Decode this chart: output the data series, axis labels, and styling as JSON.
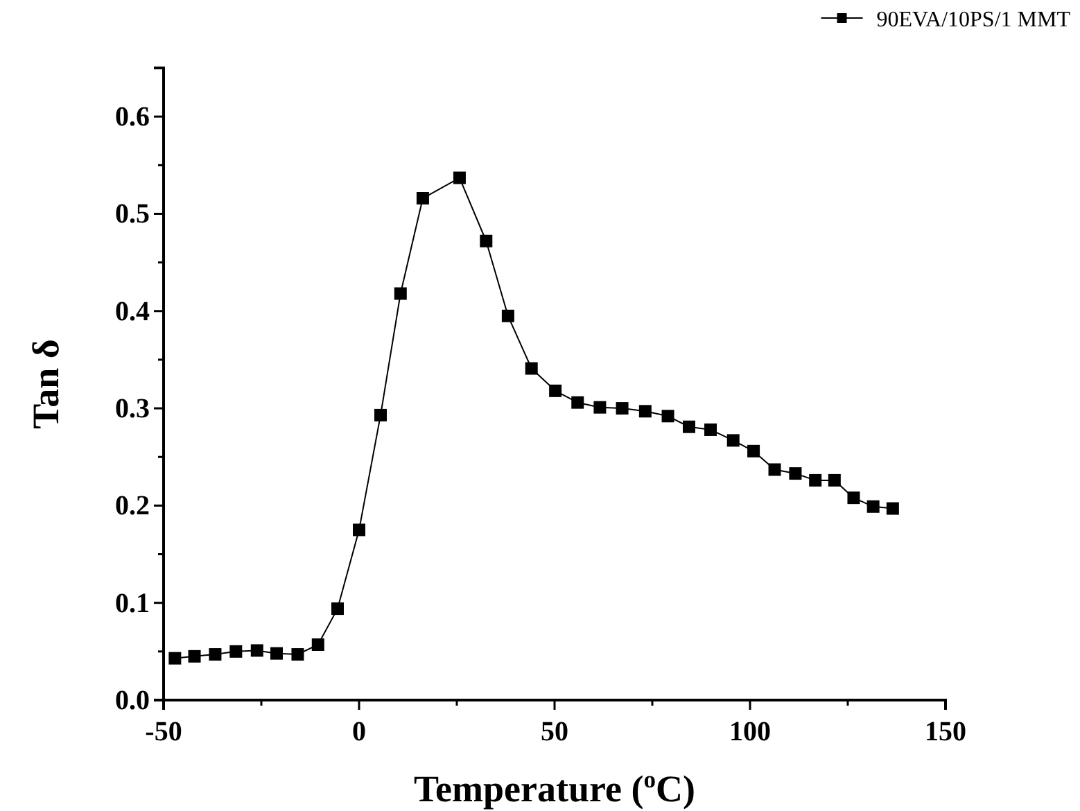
{
  "chart_data": {
    "type": "line",
    "xlabel": "Temperature  ($^{o}$C)",
    "ylabel": "Tan δ",
    "xlim": [
      -50,
      150
    ],
    "ylim": [
      0,
      0.65
    ],
    "xticks": [
      -50,
      {
        "value": -25,
        "label": null
      },
      0,
      {
        "value": 25,
        "label": null
      },
      50,
      {
        "value": 75,
        "label": null
      },
      100,
      {
        "value": 125,
        "label": null
      },
      150
    ],
    "yticks": [
      "0.0",
      {
        "value": 0.05,
        "label": null
      },
      0.1,
      {
        "value": 0.15,
        "label": null
      },
      0.2,
      {
        "value": 0.25,
        "label": null
      },
      0.3,
      {
        "value": 0.35,
        "label": null
      },
      0.4,
      {
        "value": 0.45,
        "label": null
      },
      0.5,
      {
        "value": 0.55,
        "label": null
      },
      0.6
    ],
    "marker": "square",
    "line_style": "solid",
    "legend": "top right",
    "grid": false,
    "series": [
      {
        "name": "90EVA/10PS/1 MMT",
        "color": "#000000",
        "x": [
          -47.1,
          -42.1,
          -36.8,
          -31.5,
          -26.1,
          -21.1,
          -15.7,
          -10.5,
          -5.5,
          0,
          5.5,
          10.6,
          16.3,
          25.7,
          32.5,
          38.1,
          44.1,
          50.2,
          55.9,
          61.6,
          67.3,
          73.2,
          79.0,
          84.4,
          89.9,
          95.7,
          100.9,
          106.3,
          111.6,
          116.7,
          121.6,
          126.5,
          131.5,
          136.5
        ],
        "values": [
          0.043,
          0.045,
          0.047,
          0.05,
          0.051,
          0.048,
          0.047,
          0.057,
          0.094,
          0.175,
          0.293,
          0.418,
          0.516,
          0.537,
          0.472,
          0.395,
          0.341,
          0.318,
          0.306,
          0.301,
          0.3,
          0.297,
          0.292,
          0.281,
          0.278,
          0.267,
          0.256,
          0.237,
          0.233,
          0.226,
          0.226,
          0.208,
          0.199,
          0.197
        ]
      }
    ]
  }
}
